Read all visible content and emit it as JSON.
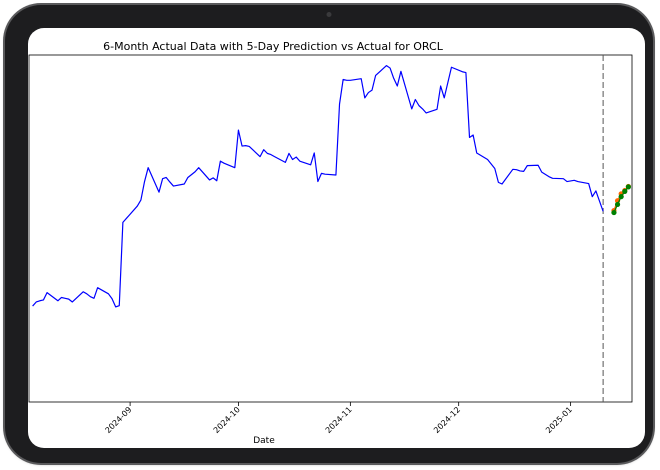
{
  "chart_data": {
    "type": "line",
    "title": "6-Month Actual Data with 5-Day Prediction vs Actual for ORCL",
    "xlabel": "Date",
    "ylabel": "",
    "x_ticks": [
      "2024-09",
      "2024-10",
      "2024-11",
      "2024-12",
      "2025-01"
    ],
    "x_range": [
      "2024-08-04",
      "2025-01-18"
    ],
    "y_range": [
      115,
      200
    ],
    "y_ticks_visible": false,
    "grid": false,
    "legend": "none",
    "cutoff_date": "2025-01-10",
    "colors": {
      "actual": "#0000ff",
      "predicted": "#ff6600",
      "actual_future": "#008000",
      "cutoff": "#555555"
    },
    "series": [
      {
        "line": "actual",
        "x": [
          "2024-08-05",
          "2024-08-06",
          "2024-08-07",
          "2024-08-08",
          "2024-08-09",
          "2024-08-12",
          "2024-08-13",
          "2024-08-14",
          "2024-08-15",
          "2024-08-16",
          "2024-08-19",
          "2024-08-20",
          "2024-08-21",
          "2024-08-22",
          "2024-08-23",
          "2024-08-26",
          "2024-08-27",
          "2024-08-28",
          "2024-08-29",
          "2024-08-30",
          "2024-09-03",
          "2024-09-04",
          "2024-09-05",
          "2024-09-06",
          "2024-09-09",
          "2024-09-10",
          "2024-09-11",
          "2024-09-12",
          "2024-09-13",
          "2024-09-16",
          "2024-09-17",
          "2024-09-18",
          "2024-09-19",
          "2024-09-20",
          "2024-09-23",
          "2024-09-24",
          "2024-09-25",
          "2024-09-26",
          "2024-09-27",
          "2024-09-30",
          "2024-10-01",
          "2024-10-02",
          "2024-10-03",
          "2024-10-04",
          "2024-10-07",
          "2024-10-08",
          "2024-10-09",
          "2024-10-10",
          "2024-10-11",
          "2024-10-14",
          "2024-10-15",
          "2024-10-16",
          "2024-10-17",
          "2024-10-18",
          "2024-10-21",
          "2024-10-22",
          "2024-10-23",
          "2024-10-24",
          "2024-10-25",
          "2024-10-28",
          "2024-10-29",
          "2024-10-30",
          "2024-10-31",
          "2024-11-01",
          "2024-11-04",
          "2024-11-05",
          "2024-11-06",
          "2024-11-07",
          "2024-11-08",
          "2024-11-11",
          "2024-11-12",
          "2024-11-13",
          "2024-11-14",
          "2024-11-15",
          "2024-11-18",
          "2024-11-19",
          "2024-11-20",
          "2024-11-21",
          "2024-11-22",
          "2024-11-25",
          "2024-11-26",
          "2024-11-27",
          "2024-11-29",
          "2024-12-02",
          "2024-12-03",
          "2024-12-04",
          "2024-12-05",
          "2024-12-06",
          "2024-12-09",
          "2024-12-10",
          "2024-12-11",
          "2024-12-12",
          "2024-12-13",
          "2024-12-16",
          "2024-12-17",
          "2024-12-18",
          "2024-12-19",
          "2024-12-20",
          "2024-12-23",
          "2024-12-24",
          "2024-12-26",
          "2024-12-27",
          "2024-12-30",
          "2024-12-31",
          "2025-01-02",
          "2025-01-03",
          "2025-01-06",
          "2025-01-07",
          "2025-01-08",
          "2025-01-10"
        ],
        "y": [
          138.5,
          139.5,
          139.8,
          140.0,
          141.8,
          139.8,
          140.6,
          140.4,
          140.2,
          139.5,
          142.0,
          141.5,
          140.8,
          140.4,
          143.0,
          141.5,
          140.3,
          138.3,
          138.6,
          159.0,
          163.0,
          164.5,
          169.0,
          172.4,
          166.4,
          169.7,
          170.0,
          168.9,
          167.9,
          168.4,
          170.0,
          170.7,
          171.4,
          172.4,
          169.4,
          169.9,
          169.2,
          174.0,
          173.5,
          172.4,
          181.6,
          177.7,
          177.8,
          177.6,
          175.1,
          176.8,
          175.9,
          175.6,
          175.1,
          173.7,
          175.9,
          174.4,
          175.0,
          174.0,
          173.1,
          176.0,
          169.0,
          171.0,
          170.8,
          170.6,
          188.0,
          194.0,
          193.8,
          193.8,
          194.2,
          189.5,
          190.8,
          191.4,
          195.0,
          197.4,
          196.8,
          194.3,
          192.4,
          196.0,
          186.8,
          189.1,
          187.6,
          186.8,
          185.8,
          186.7,
          192.4,
          189.5,
          197.0,
          195.9,
          195.7,
          179.8,
          180.4,
          176.0,
          174.4,
          173.3,
          172.2,
          168.8,
          168.4,
          172.0,
          171.9,
          171.6,
          171.5,
          172.9,
          173.0,
          171.3,
          170.2,
          169.8,
          169.7,
          169.0,
          169.3,
          169.0,
          168.5,
          165.3,
          166.7,
          161.7
        ],
        "marker": false
      },
      {
        "line": "predicted",
        "x": [
          "2025-01-13",
          "2025-01-14",
          "2025-01-15",
          "2025-01-16",
          "2025-01-17"
        ],
        "y": [
          161.9,
          164.3,
          166.0,
          166.8,
          167.8
        ],
        "marker": true
      },
      {
        "line": "actual_future",
        "x": [
          "2025-01-13",
          "2025-01-14",
          "2025-01-15",
          "2025-01-16",
          "2025-01-17"
        ],
        "y": [
          161.4,
          163.4,
          165.3,
          166.6,
          167.7
        ],
        "marker": true
      }
    ]
  }
}
